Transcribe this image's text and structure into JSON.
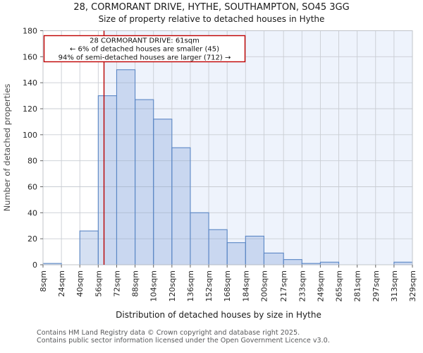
{
  "title": {
    "line1": "28, CORMORANT DRIVE, HYTHE, SOUTHAMPTON, SO45 3GG",
    "line2": "Size of property relative to detached houses in Hythe"
  },
  "annotation": {
    "line1": "28 CORMORANT DRIVE: 61sqm",
    "line2": "← 6% of detached houses are smaller (45)",
    "line3": "94% of semi-detached houses are larger (712) →"
  },
  "chart_data": {
    "type": "bar",
    "title": "28, CORMORANT DRIVE, HYTHE, SOUTHAMPTON, SO45 3GG — Size of property relative to detached houses in Hythe",
    "xlabel": "Distribution of detached houses by size in Hythe",
    "ylabel": "Number of detached properties",
    "categories": [
      "8sqm",
      "24sqm",
      "40sqm",
      "56sqm",
      "72sqm",
      "88sqm",
      "104sqm",
      "120sqm",
      "136sqm",
      "152sqm",
      "168sqm",
      "184sqm",
      "200sqm",
      "217sqm",
      "233sqm",
      "249sqm",
      "265sqm",
      "281sqm",
      "297sqm",
      "313sqm",
      "329sqm"
    ],
    "bin_edges_sqm": [
      8,
      24,
      40,
      56,
      72,
      88,
      104,
      120,
      136,
      152,
      168,
      184,
      200,
      217,
      233,
      249,
      265,
      281,
      297,
      313,
      329
    ],
    "values": [
      1,
      0,
      26,
      130,
      150,
      127,
      112,
      90,
      40,
      27,
      17,
      22,
      9,
      4,
      1,
      2,
      0,
      0,
      0,
      2
    ],
    "ylim": [
      0,
      180
    ],
    "yticks": [
      0,
      20,
      40,
      60,
      80,
      100,
      120,
      140,
      160,
      180
    ],
    "grid": true,
    "legend": false,
    "marker_sqm": 61,
    "marker_label": "61sqm"
  },
  "footer": {
    "line1": "Contains HM Land Registry data © Crown copyright and database right 2025.",
    "line2": "Contains public sector information licensed under the Open Government Licence v3.0."
  },
  "colors": {
    "bar_fill": "#7398d4",
    "bar_fill_opacity": "0.3",
    "bar_stroke": "#5b87c5",
    "shade_right_of_marker": "#eef3fc",
    "gridline": "#c9cdd3",
    "spine": "#c0c4ca",
    "marker_red": "#b80000",
    "annotation_border": "#c00000",
    "annotation_bg": "#ffffff"
  }
}
